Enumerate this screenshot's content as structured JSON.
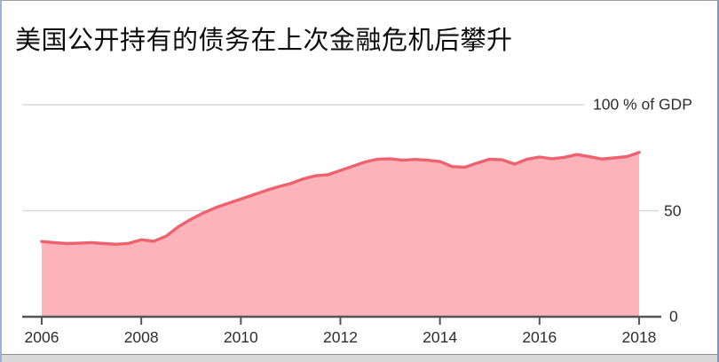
{
  "card": {
    "title": "美国公开持有的债务在上次金融危机后攀升"
  },
  "chart_data": {
    "type": "area",
    "title": "美国公开持有的债务在上次金融危机后攀升",
    "ylabel": "% of GDP",
    "xlim": [
      2006,
      2018
    ],
    "ylim": [
      0,
      100
    ],
    "grid": true,
    "legend_position": "none",
    "x_tick_labels": [
      "2006",
      "2008",
      "2010",
      "2012",
      "2014",
      "2016",
      "2018"
    ],
    "y_ticks": [
      {
        "value": 0,
        "label": "0"
      },
      {
        "value": 50,
        "label": "50"
      },
      {
        "value": 100,
        "label": "100 % of GDP"
      }
    ],
    "series_name": "美国公开持有的债务 (% of GDP)",
    "x": [
      2006.0,
      2006.25,
      2006.5,
      2006.75,
      2007.0,
      2007.25,
      2007.5,
      2007.75,
      2008.0,
      2008.25,
      2008.5,
      2008.75,
      2009.0,
      2009.25,
      2009.5,
      2009.75,
      2010.0,
      2010.25,
      2010.5,
      2010.75,
      2011.0,
      2011.25,
      2011.5,
      2011.75,
      2012.0,
      2012.25,
      2012.5,
      2012.75,
      2013.0,
      2013.25,
      2013.5,
      2013.75,
      2014.0,
      2014.25,
      2014.5,
      2014.75,
      2015.0,
      2015.25,
      2015.5,
      2015.75,
      2016.0,
      2016.25,
      2016.5,
      2016.75,
      2017.0,
      2017.25,
      2017.5,
      2017.75,
      2018.0
    ],
    "values": [
      35.5,
      35.0,
      34.5,
      34.7,
      35.0,
      34.5,
      34.2,
      34.6,
      36.3,
      35.6,
      38.0,
      42.5,
      46.0,
      49.0,
      51.5,
      53.5,
      55.5,
      57.5,
      59.5,
      61.3,
      62.8,
      65.0,
      66.5,
      67.0,
      69.0,
      71.0,
      73.0,
      74.3,
      74.5,
      73.8,
      74.2,
      73.8,
      73.2,
      70.8,
      70.5,
      72.5,
      74.3,
      74.0,
      72.0,
      74.3,
      75.3,
      74.5,
      75.2,
      76.5,
      75.5,
      74.4,
      74.9,
      75.5,
      77.5
    ],
    "colors": {
      "line": "#ee616e",
      "fill": "#fcb3b9",
      "grid": "#d9d9d9",
      "axis": "#555555",
      "label": "#2e2e2e",
      "title": "#0d0d0d"
    }
  }
}
